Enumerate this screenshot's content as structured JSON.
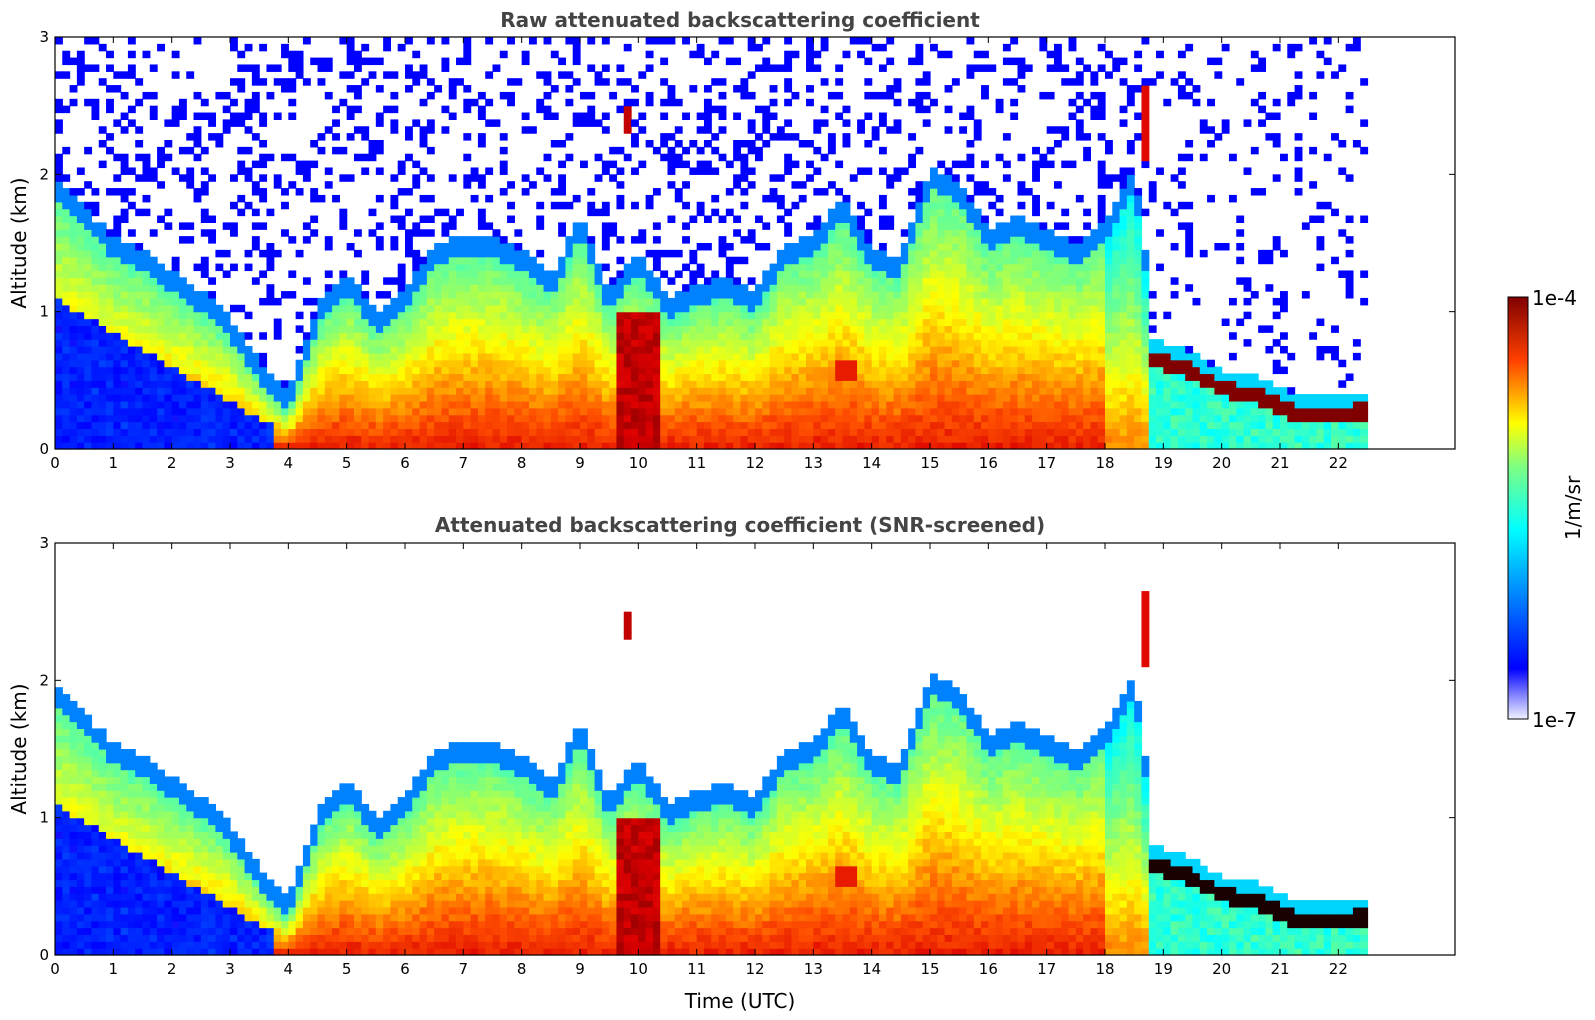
{
  "chart_data": [
    {
      "type": "heatmap",
      "title": "Raw attenuated backscattering coefficient",
      "xlabel": "",
      "ylabel": "Altitude (km)",
      "xlim": [
        0,
        24
      ],
      "ylim": [
        0,
        3
      ],
      "xticks": [
        "0",
        "1",
        "2",
        "3",
        "4",
        "5",
        "6",
        "7",
        "8",
        "9",
        "10",
        "11",
        "12",
        "13",
        "14",
        "15",
        "16",
        "17",
        "18",
        "19",
        "20",
        "21",
        "22"
      ],
      "yticks": [
        "0",
        "1",
        "2",
        "3"
      ],
      "data_end_hour": 22.5,
      "boundary_layer_top_km": [
        [
          0,
          1.8
        ],
        [
          0.5,
          1.6
        ],
        [
          1,
          1.4
        ],
        [
          1.5,
          1.3
        ],
        [
          2,
          1.15
        ],
        [
          2.5,
          1.0
        ],
        [
          3,
          0.8
        ],
        [
          3.5,
          0.5
        ],
        [
          4,
          0.25
        ],
        [
          4.5,
          0.9
        ],
        [
          5,
          1.15
        ],
        [
          5.5,
          0.85
        ],
        [
          6,
          1.0
        ],
        [
          6.5,
          1.35
        ],
        [
          7,
          1.4
        ],
        [
          7.5,
          1.4
        ],
        [
          8,
          1.3
        ],
        [
          8.5,
          1.1
        ],
        [
          9,
          1.55
        ],
        [
          9.5,
          1.0
        ],
        [
          10,
          1.3
        ],
        [
          10.5,
          0.95
        ],
        [
          11,
          1.05
        ],
        [
          11.5,
          1.1
        ],
        [
          12,
          1.0
        ],
        [
          12.5,
          1.35
        ],
        [
          13,
          1.4
        ],
        [
          13.5,
          1.7
        ],
        [
          14,
          1.3
        ],
        [
          14.5,
          1.25
        ],
        [
          15,
          1.9
        ],
        [
          15.5,
          1.8
        ],
        [
          16,
          1.45
        ],
        [
          16.5,
          1.55
        ],
        [
          17,
          1.45
        ],
        [
          17.5,
          1.35
        ],
        [
          18,
          1.5
        ],
        [
          18.5,
          1.9
        ],
        [
          18.8,
          0.9
        ],
        [
          19.5,
          0.7
        ],
        [
          20,
          0.5
        ],
        [
          20.5,
          0.48
        ],
        [
          21,
          0.4
        ],
        [
          21.5,
          0.35
        ],
        [
          22,
          0.4
        ],
        [
          22.5,
          0.45
        ]
      ],
      "cloud_patches": [
        {
          "t0": 9.7,
          "t1": 9.9,
          "z0": 2.3,
          "z1": 2.5,
          "level": 0.95
        },
        {
          "t0": 18.6,
          "t1": 18.9,
          "z0": 2.1,
          "z1": 2.65,
          "level": 0.92
        },
        {
          "t0": 13.4,
          "t1": 13.8,
          "z0": 0.52,
          "z1": 0.65,
          "level": 0.9
        }
      ],
      "night_layer": {
        "t0": 18.75,
        "t1": 22.5,
        "z_top": [
          0.72,
          0.65,
          0.5,
          0.45,
          0.32,
          0.3,
          0.35
        ],
        "level": 1.0
      }
    },
    {
      "type": "heatmap",
      "title": "Attenuated backscattering coefficient (SNR-screened)",
      "xlabel": "Time (UTC)",
      "ylabel": "Altitude (km)",
      "xlim": [
        0,
        24
      ],
      "ylim": [
        0,
        3
      ],
      "xticks": [
        "0",
        "1",
        "2",
        "3",
        "4",
        "5",
        "6",
        "7",
        "8",
        "9",
        "10",
        "11",
        "12",
        "13",
        "14",
        "15",
        "16",
        "17",
        "18",
        "19",
        "20",
        "21",
        "22"
      ],
      "yticks": [
        "0",
        "1",
        "2",
        "3"
      ],
      "data_end_hour": 22.5,
      "screened": true
    }
  ],
  "colorbar": {
    "label": "1/m/sr",
    "max_label": "1e-4",
    "min_label": "1e-7",
    "colormap": "jet",
    "stops": [
      "#f0f0ff",
      "#0000ff",
      "#00ffff",
      "#ffff00",
      "#ff0000",
      "#800000"
    ]
  }
}
